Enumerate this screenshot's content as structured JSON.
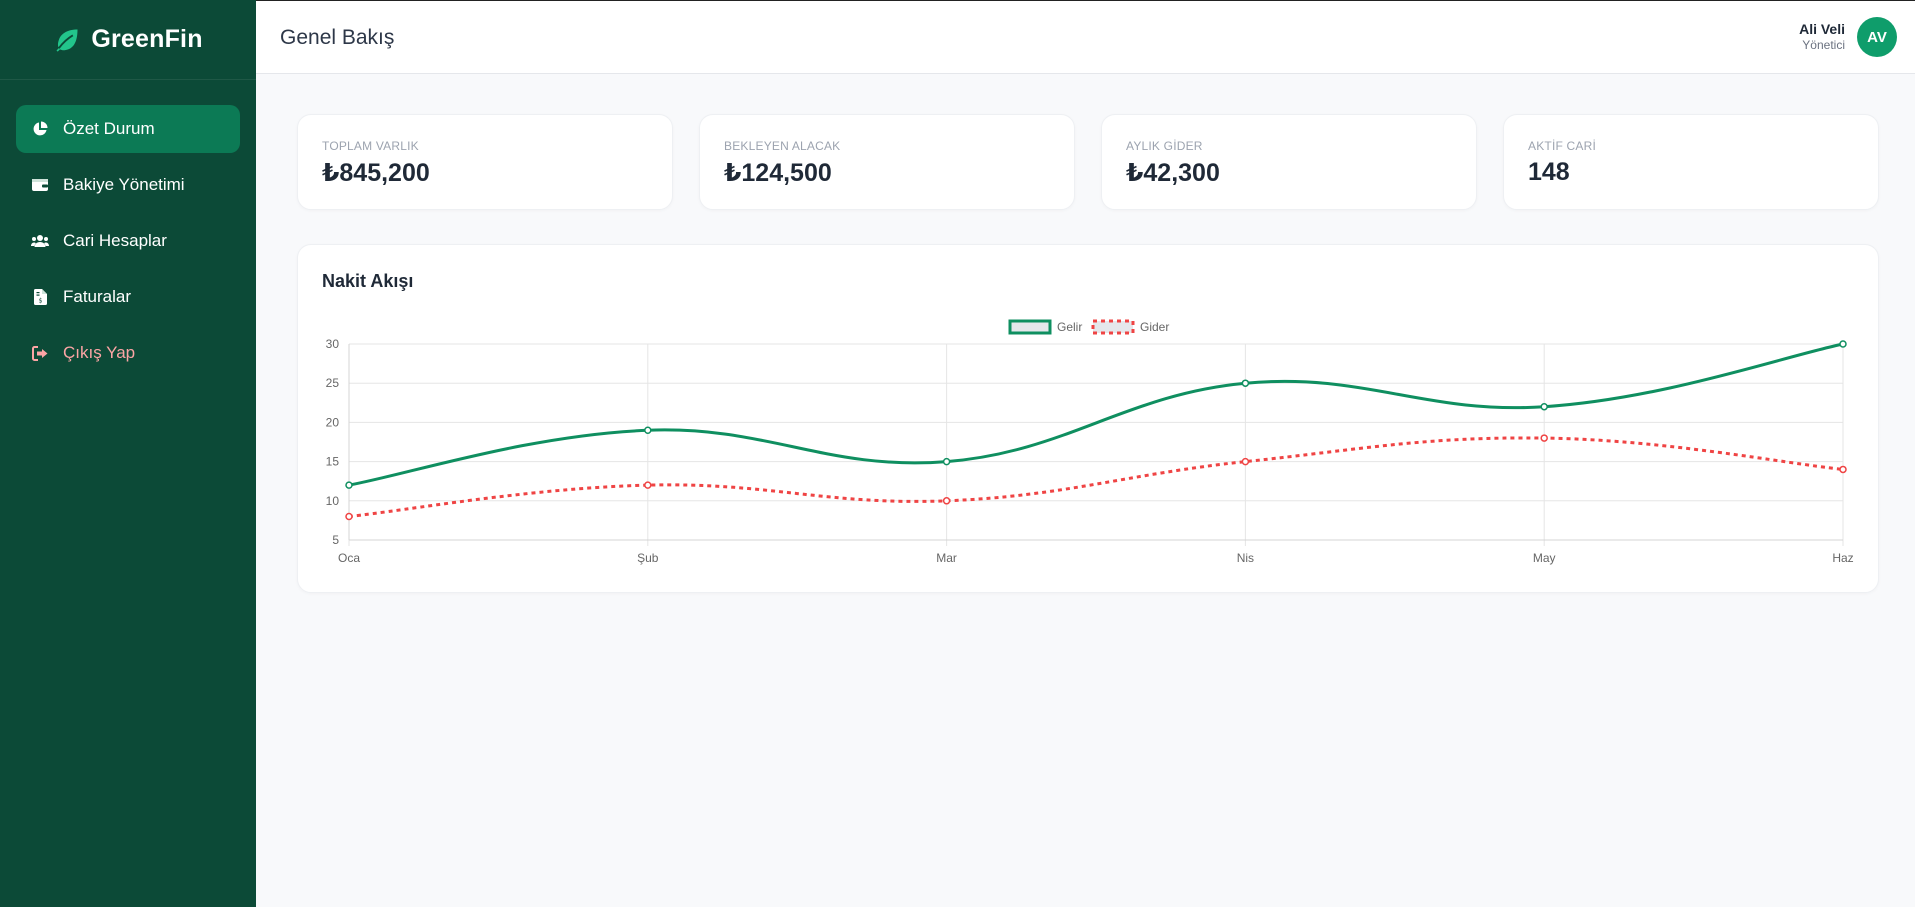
{
  "brand": {
    "name": "GreenFin",
    "icon": "leaf-icon"
  },
  "sidebar": {
    "items": [
      {
        "label": "Özet Durum",
        "icon": "pie-chart-icon",
        "active": true
      },
      {
        "label": "Bakiye Yönetimi",
        "icon": "wallet-icon",
        "active": false
      },
      {
        "label": "Cari Hesaplar",
        "icon": "users-icon",
        "active": false
      },
      {
        "label": "Faturalar",
        "icon": "invoice-icon",
        "active": false
      },
      {
        "label": "Çıkış Yap",
        "icon": "logout-icon",
        "active": false
      }
    ]
  },
  "header": {
    "title": "Genel Bakış",
    "user": {
      "name": "Ali Veli",
      "role": "Yönetici",
      "initials": "AV"
    }
  },
  "stats": [
    {
      "label": "TOPLAM VARLIK",
      "value": "₺845,200"
    },
    {
      "label": "BEKLEYEN ALACAK",
      "value": "₺124,500"
    },
    {
      "label": "AYLIK GİDER",
      "value": "₺42,300"
    },
    {
      "label": "AKTİF CARİ",
      "value": "148"
    }
  ],
  "chart_card": {
    "title": "Nakit Akışı"
  },
  "colors": {
    "sidebar_bg": "#0c4a37",
    "active_bg": "#0c7a55",
    "income": "#0f8f60",
    "expense": "#ef4444",
    "logout": "#fca5a5"
  },
  "chart_data": {
    "type": "line",
    "categories": [
      "Oca",
      "Şub",
      "Mar",
      "Nis",
      "May",
      "Haz"
    ],
    "series": [
      {
        "name": "Gelir",
        "values": [
          12,
          19,
          15,
          25,
          22,
          30
        ],
        "color": "#0f8f60",
        "style": "solid"
      },
      {
        "name": "Gider",
        "values": [
          8,
          12,
          10,
          15,
          18,
          14
        ],
        "color": "#ef4444",
        "style": "dashed"
      }
    ],
    "ylim": [
      5,
      30
    ],
    "yticks": [
      5,
      10,
      15,
      20,
      25,
      30
    ],
    "grid": true,
    "legend": "top-center",
    "smooth": true
  }
}
